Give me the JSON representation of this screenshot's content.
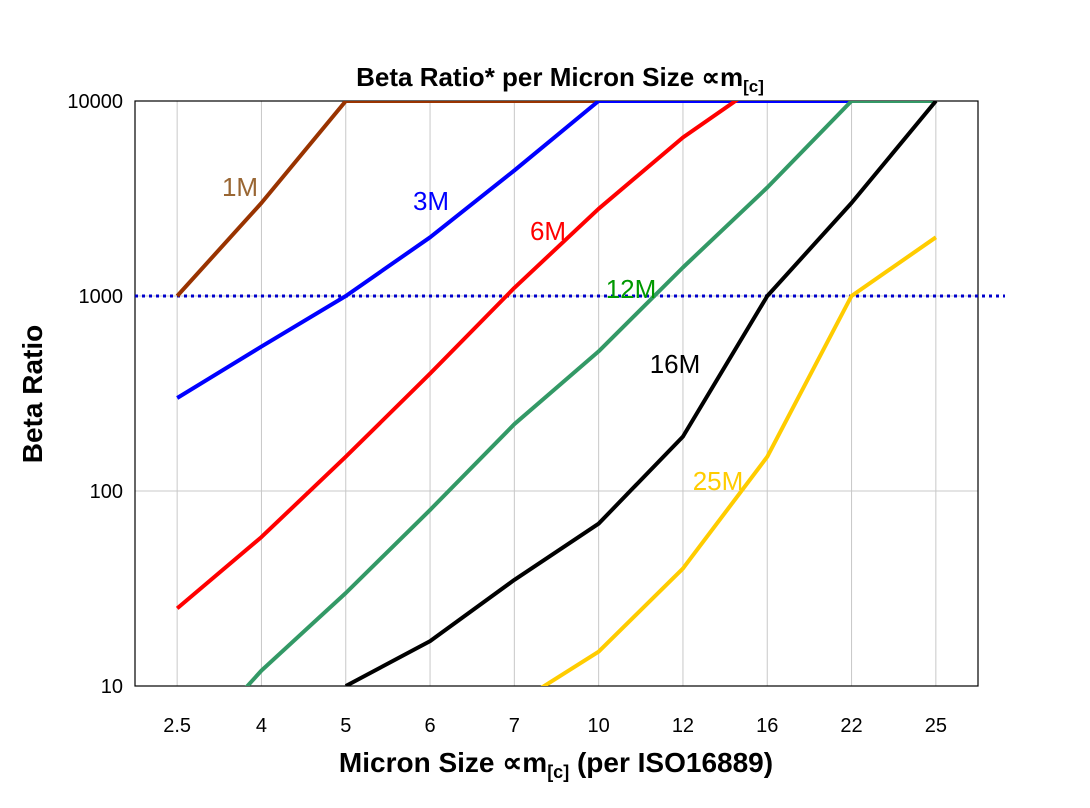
{
  "chart_data": {
    "type": "line",
    "title": {
      "main": "Beta Ratio* per Micron Size ∝m",
      "sub": "[c]"
    },
    "xlabel": {
      "pre": "Micron Size ∝m",
      "sub": "[c]",
      "post": " (per ISO16889)"
    },
    "ylabel": "Beta Ratio",
    "y_scale": "log",
    "ylim": [
      10,
      10000
    ],
    "yticks": [
      "10",
      "100",
      "1000",
      "10000"
    ],
    "categories": [
      "2.5",
      "4",
      "5",
      "6",
      "7",
      "10",
      "12",
      "16",
      "22",
      "25"
    ],
    "grid": {
      "vertical": true,
      "horizontal": true
    },
    "reference_line": {
      "value": 1000,
      "color": "#0000CC",
      "style": "dotted"
    },
    "series": [
      {
        "name": "1M",
        "color": "#993300",
        "label_color": "#996633",
        "values": [
          1000,
          3000,
          10000,
          10000,
          10000,
          10000,
          null,
          null,
          null,
          null
        ]
      },
      {
        "name": "3M",
        "color": "#0000FF",
        "label_color": "#0000FF",
        "values": [
          300,
          550,
          1000,
          2000,
          4400,
          10000,
          10000,
          10000,
          10000,
          10000
        ]
      },
      {
        "name": "6M",
        "color": "#FF0000",
        "label_color": "#FF0000",
        "values": [
          25,
          58,
          150,
          400,
          1100,
          2800,
          6500,
          13000,
          null,
          null
        ]
      },
      {
        "name": "12M",
        "color": "#339966",
        "label_color": "#009900",
        "values": [
          4,
          12,
          30,
          80,
          220,
          520,
          1400,
          3600,
          10000,
          10000
        ]
      },
      {
        "name": "16M",
        "color": "#000000",
        "label_color": "#000000",
        "values": [
          null,
          null,
          10,
          17,
          35,
          68,
          190,
          1000,
          3000,
          10000
        ]
      },
      {
        "name": "25M",
        "color": "#FFCC00",
        "label_color": "#FFCC00",
        "values": [
          null,
          null,
          null,
          null,
          8,
          15,
          40,
          150,
          1000,
          2000
        ]
      }
    ]
  }
}
